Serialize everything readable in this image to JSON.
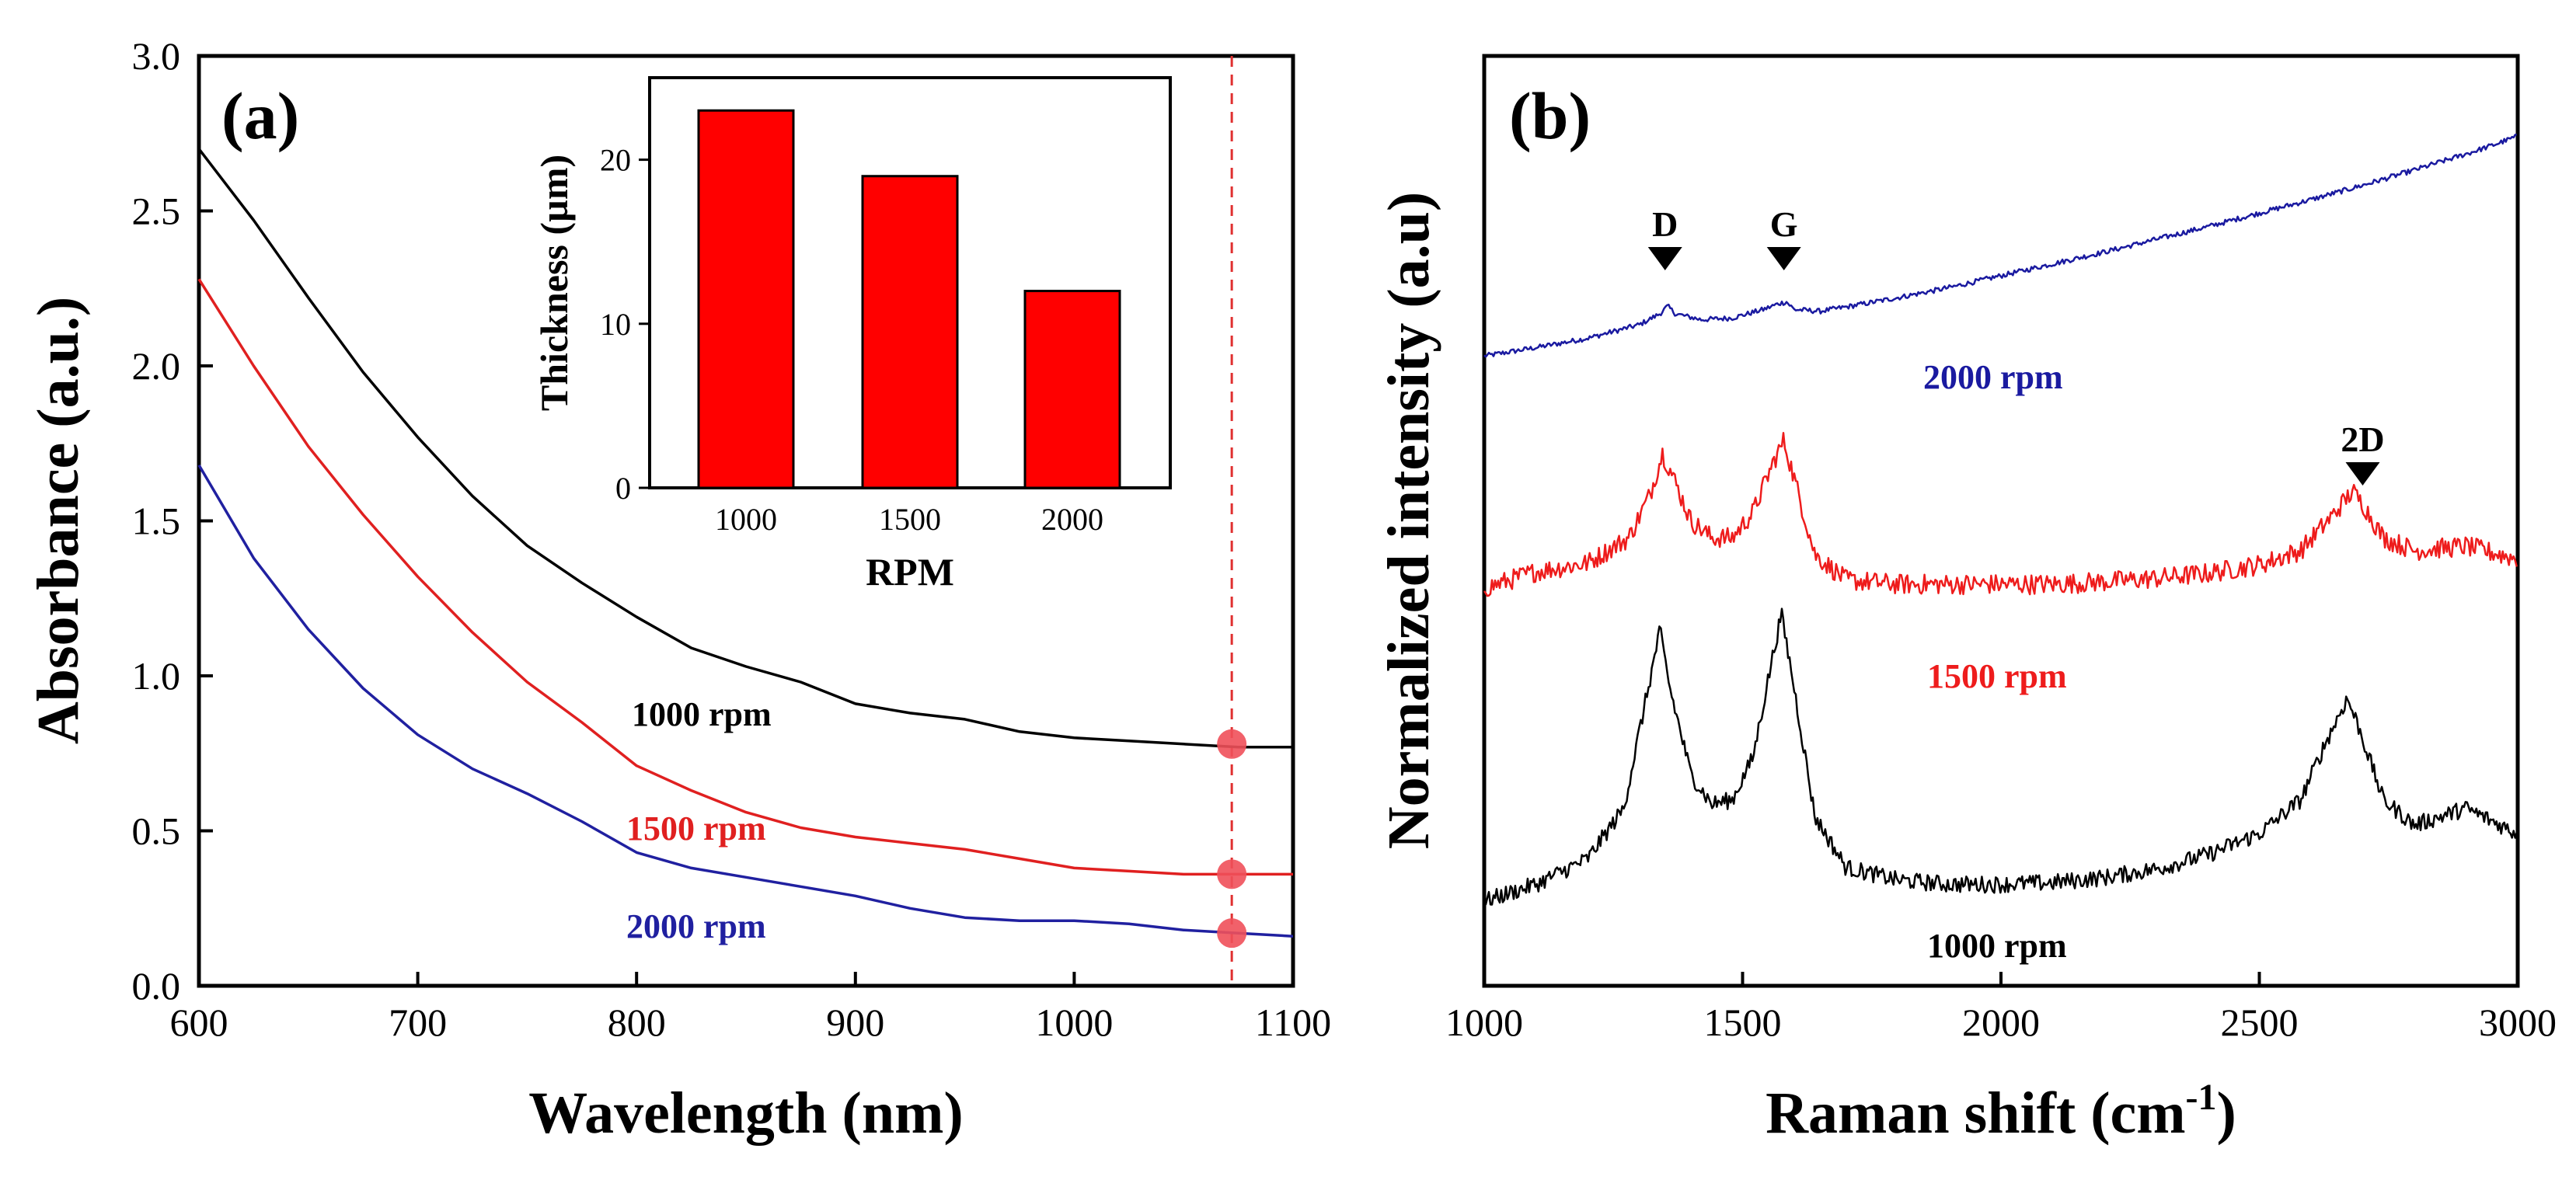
{
  "chart_data": [
    {
      "panel": "(a)",
      "type": "line",
      "xlabel": "Wavelength (nm)",
      "ylabel": "Absorbance (a.u.)",
      "xlim": [
        600,
        1100
      ],
      "ylim": [
        0.0,
        3.0
      ],
      "xticks": [
        "600",
        "700",
        "800",
        "900",
        "1000",
        "1100"
      ],
      "yticks": [
        "0.0",
        "0.5",
        "1.0",
        "1.5",
        "2.0",
        "2.5",
        "3.0"
      ],
      "grid": false,
      "marker_line": {
        "x": 1072,
        "color": "#e03030",
        "style": "dashed"
      },
      "series": [
        {
          "name": "1000 rpm",
          "color": "#000000",
          "x": [
            600,
            625,
            650,
            675,
            700,
            725,
            750,
            775,
            800,
            825,
            850,
            875,
            900,
            925,
            950,
            975,
            1000,
            1025,
            1050,
            1075,
            1100
          ],
          "y": [
            2.7,
            2.47,
            2.22,
            1.98,
            1.77,
            1.58,
            1.42,
            1.3,
            1.19,
            1.09,
            1.03,
            0.98,
            0.91,
            0.88,
            0.86,
            0.82,
            0.8,
            0.79,
            0.78,
            0.77,
            0.77
          ],
          "marker": {
            "x": 1072,
            "y": 0.78
          }
        },
        {
          "name": "1500 rpm",
          "color": "#e02020",
          "x": [
            600,
            625,
            650,
            675,
            700,
            725,
            750,
            775,
            800,
            825,
            850,
            875,
            900,
            925,
            950,
            975,
            1000,
            1025,
            1050,
            1075,
            1100
          ],
          "y": [
            2.28,
            2.0,
            1.74,
            1.52,
            1.32,
            1.14,
            0.98,
            0.85,
            0.71,
            0.63,
            0.56,
            0.51,
            0.48,
            0.46,
            0.44,
            0.41,
            0.38,
            0.37,
            0.36,
            0.36,
            0.36
          ],
          "marker": {
            "x": 1072,
            "y": 0.36
          }
        },
        {
          "name": "2000 rpm",
          "color": "#2020a0",
          "x": [
            600,
            625,
            650,
            675,
            700,
            725,
            750,
            775,
            800,
            825,
            850,
            875,
            900,
            925,
            950,
            975,
            1000,
            1025,
            1050,
            1075,
            1100
          ],
          "y": [
            1.68,
            1.38,
            1.15,
            0.96,
            0.81,
            0.7,
            0.62,
            0.53,
            0.43,
            0.38,
            0.35,
            0.32,
            0.29,
            0.25,
            0.22,
            0.21,
            0.21,
            0.2,
            0.18,
            0.17,
            0.16
          ],
          "marker": {
            "x": 1072,
            "y": 0.17
          }
        }
      ],
      "inset": {
        "type": "bar",
        "xlabel": "RPM",
        "ylabel": "Thickness (µm)",
        "categories": [
          "1000",
          "1500",
          "2000"
        ],
        "values": [
          23,
          19,
          12
        ],
        "ylim": [
          0,
          25
        ],
        "yticks": [
          "0",
          "10",
          "20"
        ],
        "color": "#ff0000"
      }
    },
    {
      "panel": "(b)",
      "type": "line",
      "xlabel": "Raman shift (cm",
      "xlabel_sup": "-1",
      "xlabel_end": ")",
      "ylabel": "Normalized intensity (a.u)",
      "xlim": [
        1000,
        3000
      ],
      "xticks": [
        "1000",
        "1500",
        "2000",
        "2500",
        "3000"
      ],
      "grid": false,
      "peak_labels": [
        {
          "text": "D",
          "x": 1350
        },
        {
          "text": "G",
          "x": 1580
        },
        {
          "text": "2D",
          "x": 2700
        }
      ],
      "series": [
        {
          "name": "2000 rpm",
          "color": "#1a1aa0",
          "x": [
            1000,
            1100,
            1200,
            1300,
            1340,
            1355,
            1370,
            1420,
            1480,
            1540,
            1570,
            1585,
            1600,
            1650,
            1700,
            1800,
            1900,
            2000,
            2100,
            2200,
            2300,
            2400,
            2500,
            2600,
            2700,
            2800,
            2900,
            2950,
            3000
          ],
          "y": [
            7.45,
            7.55,
            7.66,
            7.82,
            7.95,
            8.04,
            7.95,
            7.88,
            7.9,
            8.0,
            8.07,
            8.09,
            8.0,
            7.98,
            8.03,
            8.14,
            8.26,
            8.4,
            8.54,
            8.68,
            8.83,
            8.98,
            9.14,
            9.3,
            9.47,
            9.65,
            9.84,
            9.94,
            10.05
          ]
        },
        {
          "name": "1500 rpm",
          "color": "#ee1c1c",
          "x": [
            1000,
            1100,
            1200,
            1280,
            1320,
            1345,
            1360,
            1400,
            1440,
            1480,
            1520,
            1560,
            1580,
            1600,
            1640,
            1700,
            1800,
            1900,
            2000,
            2100,
            2200,
            2300,
            2400,
            2500,
            2580,
            2640,
            2680,
            2700,
            2740,
            2800,
            2900,
            3000
          ],
          "y": [
            4.7,
            4.9,
            5.0,
            5.3,
            5.8,
            6.3,
            6.1,
            5.5,
            5.3,
            5.3,
            5.6,
            6.2,
            6.45,
            6.0,
            5.1,
            4.8,
            4.75,
            4.75,
            4.75,
            4.75,
            4.78,
            4.82,
            4.88,
            4.98,
            5.15,
            5.55,
            5.85,
            5.7,
            5.3,
            5.15,
            5.2,
            5.05
          ]
        },
        {
          "name": "1000 rpm",
          "color": "#000000",
          "x": [
            1000,
            1100,
            1200,
            1270,
            1310,
            1340,
            1360,
            1400,
            1440,
            1480,
            1520,
            1555,
            1575,
            1595,
            1640,
            1700,
            1800,
            1900,
            2000,
            2100,
            2200,
            2300,
            2400,
            2500,
            2580,
            2630,
            2670,
            2690,
            2740,
            2800,
            2900,
            3000
          ],
          "y": [
            1.0,
            1.2,
            1.5,
            2.1,
            3.3,
            4.2,
            3.5,
            2.5,
            2.15,
            2.2,
            2.7,
            3.8,
            4.4,
            3.7,
            2.0,
            1.4,
            1.25,
            1.2,
            1.2,
            1.22,
            1.28,
            1.38,
            1.55,
            1.8,
            2.2,
            2.9,
            3.4,
            3.1,
            2.2,
            1.9,
            2.1,
            1.8
          ]
        }
      ]
    }
  ]
}
